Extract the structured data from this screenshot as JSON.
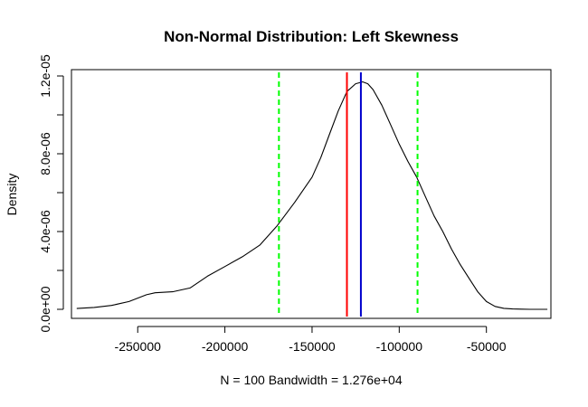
{
  "chart_data": {
    "type": "line",
    "title": "Non-Normal Distribution: Left Skewness",
    "xlabel": "N = 100   Bandwidth = 1.276e+04",
    "ylabel": "Density",
    "xlim": [
      -288000,
      -13000
    ],
    "ylim": [
      0,
      1.23e-05
    ],
    "x_ticks": [
      -250000,
      -200000,
      -150000,
      -100000,
      -50000
    ],
    "x_tick_labels": [
      "-250000",
      "-200000",
      "-150000",
      "-100000",
      "-50000"
    ],
    "y_ticks": [
      0,
      4e-06,
      8e-06,
      1.2e-05
    ],
    "y_tick_labels": [
      "0.0e+00",
      "4.0e-06",
      "8.0e-06",
      "1.2e-05"
    ],
    "y_minor_ticks": [
      2e-06,
      6e-06,
      1e-05
    ],
    "grid": false,
    "series": [
      {
        "color": "#000000",
        "x": [
          -285000,
          -275000,
          -265000,
          -255000,
          -245000,
          -240000,
          -230000,
          -220000,
          -210000,
          -200000,
          -190000,
          -180000,
          -170000,
          -160000,
          -150000,
          -145000,
          -140000,
          -135000,
          -130000,
          -125000,
          -121000,
          -118000,
          -115000,
          -110000,
          -105000,
          -100000,
          -95000,
          -90000,
          -85000,
          -80000,
          -75000,
          -70000,
          -65000,
          -60000,
          -55000,
          -50000,
          -45000,
          -40000,
          -35000,
          -30000,
          -25000,
          -20000,
          -15000
        ],
        "y": [
          4e-08,
          1e-07,
          2e-07,
          4e-07,
          7.5e-07,
          8.5e-07,
          9e-07,
          1.1e-06,
          1.7e-06,
          2.2e-06,
          2.7e-06,
          3.3e-06,
          4.3e-06,
          5.5e-06,
          6.8e-06,
          7.8e-06,
          9e-06,
          1.02e-05,
          1.12e-05,
          1.16e-05,
          1.17e-05,
          1.16e-05,
          1.13e-05,
          1.05e-05,
          9.5e-06,
          8.5e-06,
          7.6e-06,
          6.8e-06,
          5.8e-06,
          4.8e-06,
          4e-06,
          3.1e-06,
          2.3e-06,
          1.6e-06,
          9e-07,
          4e-07,
          1.5e-07,
          5e-08,
          2e-08,
          1e-08,
          0,
          0,
          0
        ]
      }
    ],
    "vlines": [
      {
        "x": -169000,
        "color": "#00ff00",
        "style": "dashed"
      },
      {
        "x": -130000,
        "color": "#ff0000",
        "style": "solid"
      },
      {
        "x": -122000,
        "color": "#0000cd",
        "style": "solid"
      },
      {
        "x": -89500,
        "color": "#00ff00",
        "style": "dashed"
      }
    ]
  }
}
